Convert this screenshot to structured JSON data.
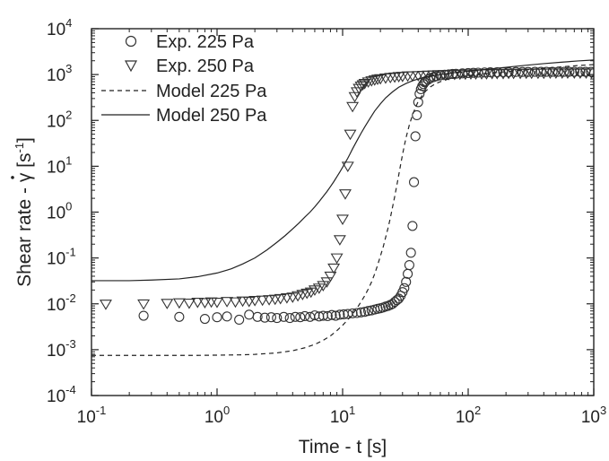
{
  "chart_data": {
    "type": "scatter",
    "title": "",
    "xlabel": "Time - t [s]",
    "ylabel_prefix": "Shear rate - ",
    "ylabel_symbol": "γ",
    "ylabel_unit_open": " [s",
    "ylabel_unit_exp": "-1",
    "ylabel_unit_close": "]",
    "xscale": "log",
    "yscale": "log",
    "xlim": [
      0.1,
      1000
    ],
    "ylim": [
      0.0001,
      10000
    ],
    "grid": false,
    "legend_position": "top-left",
    "x_ticks": [
      {
        "base": "10",
        "exp": "-1",
        "value": 0.1
      },
      {
        "base": "10",
        "exp": "0",
        "value": 1
      },
      {
        "base": "10",
        "exp": "1",
        "value": 10
      },
      {
        "base": "10",
        "exp": "2",
        "value": 100
      },
      {
        "base": "10",
        "exp": "3",
        "value": 1000
      }
    ],
    "y_ticks": [
      {
        "base": "10",
        "exp": "-4",
        "value": 0.0001
      },
      {
        "base": "10",
        "exp": "-3",
        "value": 0.001
      },
      {
        "base": "10",
        "exp": "-2",
        "value": 0.01
      },
      {
        "base": "10",
        "exp": "-1",
        "value": 0.1
      },
      {
        "base": "10",
        "exp": "0",
        "value": 1
      },
      {
        "base": "10",
        "exp": "1",
        "value": 10
      },
      {
        "base": "10",
        "exp": "2",
        "value": 100
      },
      {
        "base": "10",
        "exp": "3",
        "value": 1000
      },
      {
        "base": "10",
        "exp": "4",
        "value": 10000
      }
    ],
    "series": [
      {
        "name": "Exp. 225 Pa",
        "kind": "scatter",
        "marker": "circle",
        "x": [
          0.26,
          0.5,
          0.8,
          1.0,
          1.2,
          1.5,
          1.8,
          2.1,
          2.4,
          2.7,
          3.0,
          3.4,
          3.8,
          4.2,
          4.6,
          5.0,
          5.5,
          6.0,
          6.5,
          7.0,
          7.6,
          8.2,
          8.8,
          9.5,
          10.2,
          11,
          12,
          13,
          14,
          15,
          16,
          17,
          18,
          19,
          20,
          21,
          22,
          23,
          24,
          25,
          26,
          27,
          28,
          29,
          30,
          31,
          32,
          33,
          34,
          35,
          36,
          37,
          38,
          39,
          40,
          41,
          42,
          43,
          44,
          45,
          46,
          48,
          50,
          53,
          56,
          60,
          65,
          70,
          75,
          80,
          90,
          100,
          110,
          120,
          135,
          150,
          170,
          190,
          210,
          240,
          270,
          300,
          340,
          380,
          420,
          470,
          520,
          580,
          640,
          700,
          780,
          860,
          950
        ],
        "y": [
          0.0055,
          0.0052,
          0.0047,
          0.0051,
          0.0053,
          0.0045,
          0.0058,
          0.0052,
          0.005,
          0.0051,
          0.0049,
          0.0052,
          0.0049,
          0.0052,
          0.0051,
          0.0054,
          0.0052,
          0.0056,
          0.0053,
          0.0055,
          0.0054,
          0.0057,
          0.0055,
          0.0058,
          0.0059,
          0.006,
          0.0062,
          0.0063,
          0.0065,
          0.0067,
          0.007,
          0.0072,
          0.0075,
          0.0078,
          0.008,
          0.0083,
          0.0087,
          0.009,
          0.0095,
          0.01,
          0.011,
          0.012,
          0.013,
          0.015,
          0.018,
          0.022,
          0.03,
          0.045,
          0.07,
          0.13,
          0.5,
          4.5,
          45,
          130,
          250,
          380,
          480,
          560,
          620,
          680,
          720,
          780,
          830,
          880,
          920,
          960,
          990,
          1010,
          1030,
          1040,
          1060,
          1080,
          1090,
          1100,
          1110,
          1120,
          1120,
          1130,
          1130,
          1140,
          1140,
          1140,
          1150,
          1150,
          1150,
          1150,
          1150,
          1150,
          1150,
          1150,
          1150,
          1150,
          1150
        ]
      },
      {
        "name": "Exp. 250 Pa",
        "kind": "scatter",
        "marker": "triangle-down",
        "x": [
          0.13,
          0.26,
          0.4,
          0.5,
          0.6,
          0.7,
          0.8,
          0.9,
          1.0,
          1.2,
          1.4,
          1.6,
          1.8,
          2.0,
          2.3,
          2.6,
          2.9,
          3.2,
          3.6,
          4.0,
          4.4,
          4.8,
          5.2,
          5.6,
          6.0,
          6.5,
          7.0,
          7.5,
          8.0,
          8.5,
          9.0,
          9.5,
          10.0,
          10.5,
          11.0,
          11.5,
          12.0,
          12.5,
          13,
          13.5,
          14,
          14.5,
          15,
          16,
          17,
          18,
          19,
          20,
          22,
          24,
          26,
          28,
          30,
          33,
          36,
          40,
          44,
          48,
          53,
          58,
          64,
          70,
          78,
          86,
          95,
          105,
          115,
          128,
          140,
          155,
          170,
          190,
          210,
          230,
          260,
          290,
          320,
          360,
          400,
          450,
          500,
          560,
          620,
          700,
          780,
          870,
          960
        ],
        "y": [
          0.0098,
          0.0099,
          0.0102,
          0.0105,
          0.0103,
          0.0108,
          0.0106,
          0.011,
          0.0108,
          0.0112,
          0.011,
          0.0115,
          0.0113,
          0.0118,
          0.012,
          0.0123,
          0.0126,
          0.013,
          0.0135,
          0.014,
          0.015,
          0.016,
          0.017,
          0.018,
          0.02,
          0.022,
          0.025,
          0.03,
          0.04,
          0.06,
          0.1,
          0.25,
          0.7,
          2.5,
          10,
          50,
          200,
          330,
          420,
          500,
          560,
          600,
          640,
          690,
          730,
          760,
          790,
          810,
          840,
          860,
          880,
          900,
          910,
          930,
          940,
          950,
          960,
          970,
          980,
          990,
          1000,
          1000,
          1010,
          1020,
          1020,
          1030,
          1030,
          1040,
          1040,
          1050,
          1050,
          1050,
          1060,
          1060,
          1060,
          1070,
          1070,
          1070,
          1070,
          1080,
          1080,
          1080,
          1080,
          1080,
          1080,
          1080,
          1080
        ]
      },
      {
        "name": "Model 225 Pa",
        "kind": "line",
        "dash": "dashed",
        "x": [
          0.1,
          0.2,
          0.4,
          0.7,
          1,
          1.5,
          2,
          3,
          4,
          5,
          6,
          7,
          8,
          9,
          10,
          11,
          12,
          13,
          14,
          15,
          16,
          17,
          18,
          19,
          20,
          21,
          22,
          23,
          24,
          25,
          26,
          27,
          28,
          29,
          30,
          31,
          32,
          34,
          36,
          38,
          40,
          43,
          46,
          50,
          55,
          60,
          70,
          80,
          100,
          130,
          170,
          220,
          300,
          400,
          550,
          750,
          1000
        ],
        "y": [
          0.00075,
          0.00075,
          0.00075,
          0.00075,
          0.00076,
          0.00077,
          0.00079,
          0.00085,
          0.00095,
          0.0011,
          0.0013,
          0.0016,
          0.002,
          0.0026,
          0.0034,
          0.0045,
          0.006,
          0.008,
          0.011,
          0.015,
          0.021,
          0.03,
          0.045,
          0.07,
          0.11,
          0.17,
          0.28,
          0.45,
          0.75,
          1.3,
          2.2,
          3.8,
          6.5,
          11,
          18,
          28,
          42,
          80,
          130,
          190,
          260,
          350,
          440,
          540,
          630,
          700,
          800,
          870,
          950,
          1030,
          1110,
          1190,
          1280,
          1370,
          1470,
          1570,
          1650
        ]
      },
      {
        "name": "Model 250 Pa",
        "kind": "line",
        "dash": "solid",
        "x": [
          0.1,
          0.2,
          0.3,
          0.5,
          0.7,
          1.0,
          1.3,
          1.6,
          2.0,
          2.5,
          3.0,
          3.5,
          4.0,
          4.5,
          5.0,
          5.5,
          6.0,
          6.5,
          7.0,
          7.5,
          8.0,
          8.5,
          9.0,
          9.5,
          10,
          10.5,
          11,
          11.5,
          12,
          13,
          14,
          15,
          16,
          17,
          18,
          20,
          22,
          25,
          28,
          32,
          36,
          40,
          45,
          50,
          60,
          70,
          80,
          100,
          130,
          170,
          220,
          300,
          400,
          550,
          750,
          1000
        ],
        "y": [
          0.032,
          0.032,
          0.033,
          0.035,
          0.039,
          0.047,
          0.058,
          0.074,
          0.1,
          0.15,
          0.22,
          0.31,
          0.43,
          0.58,
          0.78,
          1.0,
          1.3,
          1.7,
          2.2,
          2.8,
          3.6,
          4.6,
          5.9,
          7.5,
          9.5,
          12,
          15,
          19,
          24,
          36,
          52,
          72,
          96,
          125,
          160,
          230,
          310,
          420,
          530,
          640,
          730,
          800,
          870,
          920,
          1000,
          1060,
          1110,
          1180,
          1270,
          1370,
          1480,
          1610,
          1730,
          1860,
          1980,
          2080
        ]
      }
    ]
  }
}
